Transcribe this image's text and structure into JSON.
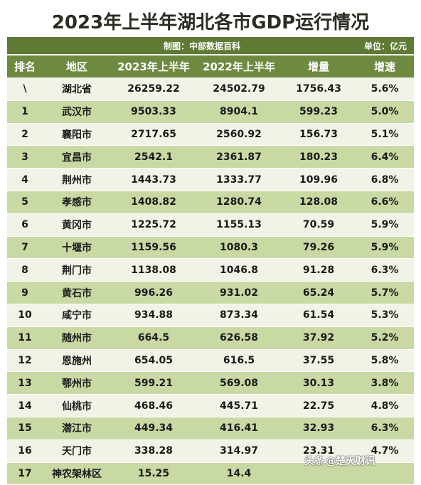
{
  "title": "2023年上半年湖北各市GDP运行情况",
  "meta": {
    "source": "制图：中部数据百科",
    "unit": "单位：亿元"
  },
  "table": {
    "headers": [
      "排名",
      "地区",
      "2023年上半年",
      "2022年上半年",
      "增量",
      "增速"
    ],
    "rows": [
      [
        "\\",
        "湖北省",
        "26259.22",
        "24502.79",
        "1756.43",
        "5.6%"
      ],
      [
        "1",
        "武汉市",
        "9503.33",
        "8904.1",
        "599.23",
        "5.0%"
      ],
      [
        "2",
        "襄阳市",
        "2717.65",
        "2560.92",
        "156.73",
        "5.1%"
      ],
      [
        "3",
        "宜昌市",
        "2542.1",
        "2361.87",
        "180.23",
        "6.4%"
      ],
      [
        "4",
        "荆州市",
        "1443.73",
        "1333.77",
        "109.96",
        "6.8%"
      ],
      [
        "5",
        "孝感市",
        "1408.82",
        "1280.74",
        "128.08",
        "6.6%"
      ],
      [
        "6",
        "黄冈市",
        "1225.72",
        "1155.13",
        "70.59",
        "5.9%"
      ],
      [
        "7",
        "十堰市",
        "1159.56",
        "1080.3",
        "79.26",
        "5.9%"
      ],
      [
        "8",
        "荆门市",
        "1138.08",
        "1046.8",
        "91.28",
        "6.3%"
      ],
      [
        "9",
        "黄石市",
        "996.26",
        "931.02",
        "65.24",
        "5.7%"
      ],
      [
        "10",
        "咸宁市",
        "934.88",
        "873.34",
        "61.54",
        "5.3%"
      ],
      [
        "11",
        "随州市",
        "664.5",
        "626.58",
        "37.92",
        "5.2%"
      ],
      [
        "12",
        "恩施州",
        "654.05",
        "616.5",
        "37.55",
        "5.8%"
      ],
      [
        "13",
        "鄂州市",
        "599.21",
        "569.08",
        "30.13",
        "3.8%"
      ],
      [
        "14",
        "仙桃市",
        "468.46",
        "445.71",
        "22.75",
        "4.8%"
      ],
      [
        "15",
        "潜江市",
        "449.34",
        "416.41",
        "32.93",
        "6.3%"
      ],
      [
        "16",
        "天门市",
        "338.28",
        "314.97",
        "23.31",
        "4.7%"
      ],
      [
        "17",
        "神农架林区",
        "15.25",
        "14.4",
        "",
        ""
      ]
    ]
  },
  "watermark": {
    "brand": "头条",
    "handle": "@楚天财讯"
  },
  "colors": {
    "header_bg": "#6d8a40",
    "meta_bg": "#5e7a35",
    "row_light": "#f0f3e6",
    "row_green": "#c9d9a4"
  }
}
